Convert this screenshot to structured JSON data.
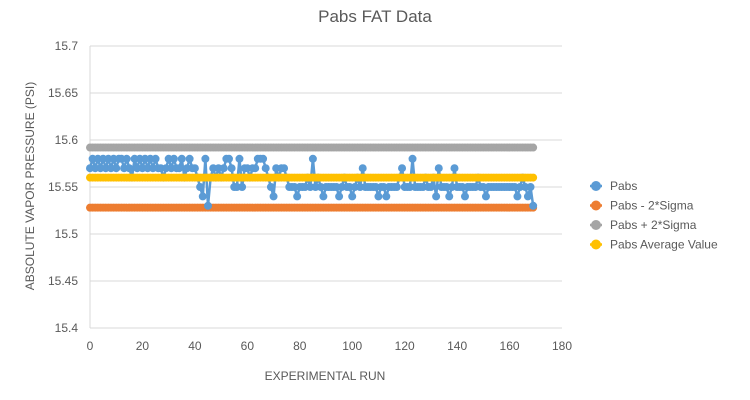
{
  "chart_data": {
    "type": "scatter",
    "title": "Pabs FAT Data",
    "xlabel": "EXPERIMENTAL RUN",
    "ylabel": "ABSOLUTE VAPOR PRESSURE (PSI)",
    "xlim": [
      0,
      180
    ],
    "ylim": [
      15.4,
      15.7
    ],
    "xticks": [
      "0",
      "20",
      "40",
      "60",
      "80",
      "100",
      "120",
      "140",
      "160",
      "180"
    ],
    "yticks": [
      "15.4",
      "15.45",
      "15.5",
      "15.55",
      "15.6",
      "15.65",
      "15.7"
    ],
    "grid": "horizontal",
    "legend_position": "right",
    "series": [
      {
        "name": "Pabs",
        "color": "#5B9BD5",
        "style": "line-markers",
        "x": [
          0,
          1,
          2,
          3,
          4,
          5,
          6,
          7,
          8,
          9,
          10,
          11,
          12,
          13,
          14,
          15,
          16,
          17,
          18,
          19,
          20,
          21,
          22,
          23,
          24,
          25,
          26,
          27,
          28,
          29,
          30,
          31,
          32,
          33,
          34,
          35,
          36,
          37,
          38,
          39,
          40,
          41,
          42,
          43,
          44,
          45,
          46,
          47,
          48,
          49,
          50,
          51,
          52,
          53,
          54,
          55,
          56,
          57,
          58,
          59,
          60,
          61,
          62,
          63,
          64,
          65,
          66,
          67,
          68,
          69,
          70,
          71,
          72,
          73,
          74,
          75,
          76,
          77,
          78,
          79,
          80,
          81,
          82,
          83,
          84,
          85,
          86,
          87,
          88,
          89,
          90,
          91,
          92,
          93,
          94,
          95,
          96,
          97,
          98,
          99,
          100,
          101,
          102,
          103,
          104,
          105,
          106,
          107,
          108,
          109,
          110,
          111,
          112,
          113,
          114,
          115,
          116,
          117,
          118,
          119,
          120,
          121,
          122,
          123,
          124,
          125,
          126,
          127,
          128,
          129,
          130,
          131,
          132,
          133,
          134,
          135,
          136,
          137,
          138,
          139,
          140,
          141,
          142,
          143,
          144,
          145,
          146,
          147,
          148,
          149,
          150,
          151,
          152,
          153,
          154,
          155,
          156,
          157,
          158,
          159,
          160,
          161,
          162,
          163,
          164,
          165,
          166,
          167,
          168,
          169
        ],
        "values": [
          15.57,
          15.58,
          15.57,
          15.58,
          15.57,
          15.58,
          15.57,
          15.58,
          15.57,
          15.58,
          15.57,
          15.58,
          15.58,
          15.57,
          15.58,
          15.57,
          15.56,
          15.58,
          15.57,
          15.58,
          15.57,
          15.58,
          15.57,
          15.58,
          15.57,
          15.58,
          15.57,
          15.57,
          15.56,
          15.57,
          15.58,
          15.57,
          15.58,
          15.57,
          15.57,
          15.58,
          15.56,
          15.57,
          15.58,
          15.57,
          15.57,
          15.56,
          15.55,
          15.54,
          15.58,
          15.53,
          15.56,
          15.57,
          15.56,
          15.57,
          15.56,
          15.57,
          15.58,
          15.58,
          15.57,
          15.55,
          15.55,
          15.58,
          15.55,
          15.57,
          15.57,
          15.56,
          15.57,
          15.57,
          15.58,
          15.58,
          15.58,
          15.57,
          15.56,
          15.55,
          15.54,
          15.57,
          15.56,
          15.57,
          15.57,
          15.56,
          15.55,
          15.55,
          15.55,
          15.54,
          15.55,
          15.55,
          15.55,
          15.56,
          15.55,
          15.58,
          15.55,
          15.56,
          15.55,
          15.54,
          15.55,
          15.55,
          15.55,
          15.55,
          15.55,
          15.54,
          15.55,
          15.56,
          15.55,
          15.55,
          15.54,
          15.55,
          15.56,
          15.55,
          15.57,
          15.55,
          15.55,
          15.55,
          15.55,
          15.55,
          15.54,
          15.55,
          15.55,
          15.54,
          15.55,
          15.55,
          15.55,
          15.55,
          15.56,
          15.57,
          15.55,
          15.55,
          15.55,
          15.58,
          15.55,
          15.55,
          15.55,
          15.55,
          15.56,
          15.55,
          15.55,
          15.56,
          15.54,
          15.57,
          15.55,
          15.55,
          15.55,
          15.54,
          15.55,
          15.57,
          15.55,
          15.55,
          15.55,
          15.54,
          15.55,
          15.55,
          15.55,
          15.55,
          15.56,
          15.55,
          15.55,
          15.54,
          15.55,
          15.55,
          15.55,
          15.55,
          15.55,
          15.55,
          15.55,
          15.55,
          15.55,
          15.55,
          15.55,
          15.54,
          15.55,
          15.56,
          15.55,
          15.54,
          15.55,
          15.53
        ]
      },
      {
        "name": "Pabs - 2*Sigma",
        "color": "#ED7D31",
        "style": "constant-markers",
        "x_range": [
          0,
          169
        ],
        "value": 15.528
      },
      {
        "name": "Pabs + 2*Sigma",
        "color": "#A5A5A5",
        "style": "constant-markers",
        "x_range": [
          0,
          169
        ],
        "value": 15.592
      },
      {
        "name": "Pabs Average Value",
        "color": "#FFC000",
        "style": "constant-markers",
        "x_range": [
          0,
          169
        ],
        "value": 15.56
      }
    ]
  }
}
